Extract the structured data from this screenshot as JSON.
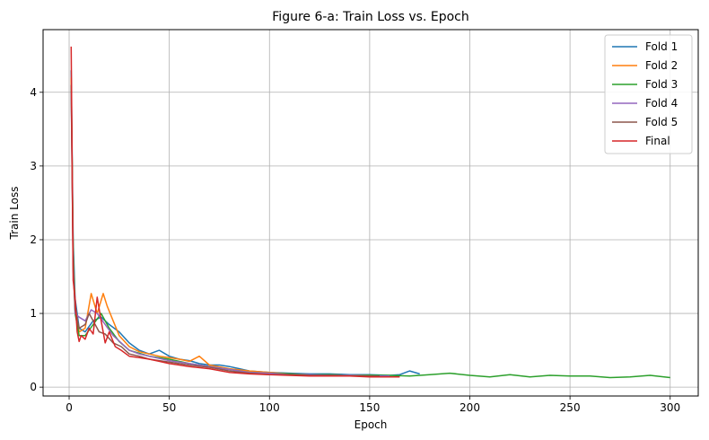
{
  "chart_data": {
    "type": "line",
    "title": "Figure 6-a: Train Loss vs. Epoch",
    "xlabel": "Epoch",
    "ylabel": "Train Loss",
    "xlim": [
      -13,
      314
    ],
    "ylim": [
      -0.12,
      4.85
    ],
    "xticks": [
      0,
      50,
      100,
      150,
      200,
      250,
      300
    ],
    "yticks": [
      0,
      1,
      2,
      3,
      4
    ],
    "grid": true,
    "legend_position": "top-right",
    "series": [
      {
        "name": "Fold 1",
        "color": "#1f77b4",
        "x": [
          1,
          2,
          3,
          5,
          8,
          12,
          16,
          20,
          25,
          30,
          35,
          40,
          45,
          50,
          55,
          60,
          65,
          70,
          75,
          80,
          85,
          90,
          100,
          110,
          120,
          130,
          140,
          150,
          160,
          165,
          170,
          175
        ],
        "y": [
          4.3,
          2.0,
          1.2,
          0.8,
          0.75,
          0.9,
          0.95,
          0.85,
          0.75,
          0.6,
          0.5,
          0.45,
          0.5,
          0.42,
          0.38,
          0.36,
          0.32,
          0.3,
          0.3,
          0.28,
          0.25,
          0.22,
          0.2,
          0.19,
          0.18,
          0.18,
          0.17,
          0.17,
          0.16,
          0.17,
          0.22,
          0.18
        ]
      },
      {
        "name": "Fold 2",
        "color": "#ff7f0e",
        "x": [
          1,
          2,
          3,
          5,
          8,
          11,
          14,
          17,
          19,
          22,
          25,
          30,
          35,
          40,
          45,
          50,
          55,
          60,
          65,
          70,
          80,
          90,
          100,
          110,
          120,
          130,
          140,
          150,
          160
        ],
        "y": [
          4.2,
          1.8,
          1.1,
          0.75,
          0.8,
          1.27,
          1.0,
          1.27,
          1.1,
          0.9,
          0.7,
          0.55,
          0.48,
          0.45,
          0.42,
          0.4,
          0.38,
          0.35,
          0.42,
          0.3,
          0.25,
          0.22,
          0.2,
          0.18,
          0.17,
          0.17,
          0.16,
          0.16,
          0.15
        ]
      },
      {
        "name": "Fold 3",
        "color": "#2ca02c",
        "x": [
          1,
          2,
          3,
          5,
          8,
          12,
          16,
          20,
          25,
          30,
          40,
          50,
          60,
          70,
          80,
          90,
          100,
          110,
          120,
          130,
          140,
          150,
          160,
          170,
          180,
          190,
          200,
          210,
          220,
          230,
          240,
          250,
          260,
          270,
          280,
          290,
          300
        ],
        "y": [
          4.1,
          1.9,
          1.0,
          0.7,
          0.7,
          0.85,
          1.0,
          0.8,
          0.62,
          0.5,
          0.42,
          0.38,
          0.32,
          0.28,
          0.24,
          0.2,
          0.19,
          0.18,
          0.17,
          0.17,
          0.16,
          0.16,
          0.16,
          0.15,
          0.17,
          0.19,
          0.16,
          0.14,
          0.17,
          0.14,
          0.16,
          0.15,
          0.15,
          0.13,
          0.14,
          0.16,
          0.13
        ]
      },
      {
        "name": "Fold 4",
        "color": "#9467bd",
        "x": [
          1,
          2,
          3,
          5,
          8,
          11,
          14,
          18,
          22,
          26,
          30,
          35,
          40,
          50,
          60,
          70,
          80,
          90,
          100,
          110,
          120,
          130,
          140,
          150,
          160
        ],
        "y": [
          4.0,
          1.7,
          1.0,
          0.95,
          0.9,
          1.05,
          1.0,
          0.85,
          0.7,
          0.6,
          0.5,
          0.45,
          0.42,
          0.36,
          0.32,
          0.28,
          0.24,
          0.2,
          0.19,
          0.17,
          0.17,
          0.16,
          0.16,
          0.15,
          0.15
        ]
      },
      {
        "name": "Fold 5",
        "color": "#8c564b",
        "x": [
          1,
          2,
          3,
          5,
          8,
          10,
          12,
          15,
          18,
          22,
          26,
          30,
          35,
          40,
          50,
          60,
          70,
          80,
          90,
          100,
          110,
          120,
          130,
          140,
          150,
          155
        ],
        "y": [
          4.1,
          1.6,
          1.05,
          0.8,
          0.85,
          1.0,
          0.9,
          0.75,
          0.72,
          0.6,
          0.55,
          0.45,
          0.42,
          0.38,
          0.34,
          0.3,
          0.27,
          0.22,
          0.19,
          0.17,
          0.17,
          0.16,
          0.16,
          0.15,
          0.15,
          0.15
        ]
      },
      {
        "name": "Final",
        "color": "#d62728",
        "x": [
          1,
          2,
          3,
          4,
          5,
          6,
          8,
          10,
          12,
          14,
          16,
          18,
          20,
          23,
          26,
          30,
          35,
          40,
          45,
          50,
          55,
          60,
          70,
          80,
          90,
          100,
          110,
          120,
          130,
          140,
          150,
          160,
          165
        ],
        "y": [
          4.62,
          1.45,
          1.2,
          0.75,
          0.62,
          0.7,
          0.65,
          0.8,
          0.72,
          1.22,
          0.9,
          0.6,
          0.75,
          0.55,
          0.5,
          0.42,
          0.4,
          0.38,
          0.35,
          0.32,
          0.3,
          0.28,
          0.25,
          0.2,
          0.18,
          0.17,
          0.16,
          0.15,
          0.15,
          0.15,
          0.14,
          0.14,
          0.14
        ]
      }
    ]
  }
}
